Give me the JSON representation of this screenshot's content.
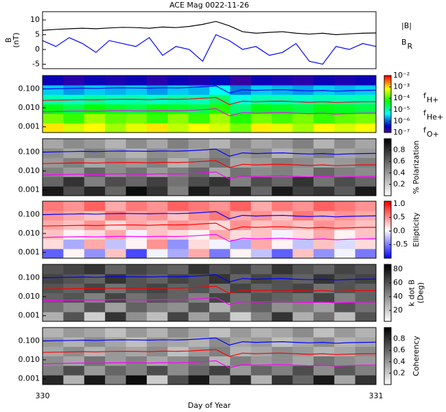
{
  "chart_data": [
    {
      "type": "line",
      "title": "ACE Mag 0022-11-26",
      "ylabel": [
        "B",
        "(nT)"
      ],
      "xlim": [
        330,
        331
      ],
      "ylim": [
        -6.5,
        12.8
      ],
      "yticks": [
        -5,
        0,
        5,
        10
      ],
      "x": [
        330,
        330.04,
        330.08,
        330.12,
        330.16,
        330.2,
        330.24,
        330.28,
        330.32,
        330.36,
        330.4,
        330.44,
        330.48,
        330.52,
        330.56,
        330.6,
        330.64,
        330.68,
        330.72,
        330.76,
        330.8,
        330.84,
        330.88,
        330.92,
        330.96,
        331
      ],
      "series": [
        {
          "name": "|B|",
          "color": "#000000",
          "values": [
            6.5,
            6.8,
            7,
            7.2,
            7,
            7.3,
            7.5,
            7.4,
            7.2,
            7.6,
            7.4,
            7.8,
            8.5,
            9.5,
            8,
            6,
            5.5,
            5.8,
            6,
            5.5,
            5.2,
            5.5,
            5,
            5.3,
            5.5,
            5.6
          ]
        },
        {
          "name": "B",
          "subscript": "R",
          "color": "#0000ff",
          "values": [
            3,
            1,
            4,
            2,
            -1,
            3,
            2,
            1,
            4,
            -2,
            1,
            0,
            -4,
            5,
            3,
            0,
            1,
            -2,
            -1,
            2,
            -4,
            -5,
            1,
            0,
            2,
            1
          ]
        }
      ]
    },
    {
      "type": "spectrogram",
      "colormap": "rainbow",
      "color_log": true,
      "xlim": [
        330,
        331
      ],
      "ylim": [
        0.0005,
        0.5
      ],
      "yticks": [
        {
          "value": 0.001,
          "label": "0.001"
        },
        {
          "value": 0.01,
          "label": "0.010"
        },
        {
          "value": 0.1,
          "label": "0.100"
        }
      ],
      "clim": [
        1e-07,
        0.01
      ],
      "cticks": [
        {
          "value": 0.01,
          "label": "10⁻²"
        },
        {
          "value": 0.001,
          "label": "10⁻³"
        },
        {
          "value": 0.0001,
          "label": "10⁻⁴"
        },
        {
          "value": 1e-05,
          "label": "10⁻⁵"
        },
        {
          "value": 1e-06,
          "label": "10⁻⁶"
        },
        {
          "value": 1e-07,
          "label": "10⁻⁷"
        }
      ],
      "z": [
        [
          0.001,
          0.0005,
          0.0008,
          0.0003,
          0.0006,
          0.001,
          0.0004,
          0.0007,
          0.0005,
          0.0002,
          0.0009,
          0.0006,
          0.0003,
          0.0008,
          0.0005,
          0.0007
        ],
        [
          0.0002,
          0.0001,
          0.0003,
          0.00015,
          0.0002,
          0.0001,
          0.00025,
          0.0001,
          0.0003,
          8e-05,
          0.0002,
          0.00012,
          0.0002,
          0.0001,
          0.00015,
          0.0002
        ],
        [
          5e-05,
          3e-05,
          6e-05,
          4e-05,
          3e-05,
          5e-05,
          4e-05,
          3e-05,
          8e-05,
          2e-05,
          5e-05,
          4e-05,
          3e-05,
          5e-05,
          4e-05,
          3e-05
        ],
        [
          1e-05,
          8e-06,
          1.2e-05,
          9e-06,
          1e-05,
          8e-06,
          1.1e-05,
          9e-06,
          2e-05,
          6e-06,
          1e-05,
          9e-06,
          8e-06,
          1e-05,
          9e-06,
          1e-05
        ],
        [
          3e-06,
          2e-06,
          3e-06,
          2.5e-06,
          3e-06,
          2e-06,
          3e-06,
          2.5e-06,
          5e-06,
          1.5e-06,
          3e-06,
          2.5e-06,
          2e-06,
          3e-06,
          2.5e-06,
          3e-06
        ],
        [
          3e-07,
          2e-07,
          3e-07,
          2.5e-07,
          3e-07,
          2e-07,
          3e-07,
          2.5e-07,
          4e-07,
          1.5e-07,
          3e-07,
          2.5e-07,
          2e-07,
          3e-07,
          2.5e-07,
          3e-07
        ]
      ],
      "x": [
        330,
        330.04,
        330.08,
        330.12,
        330.16,
        330.2,
        330.24,
        330.28,
        330.32,
        330.36,
        330.4,
        330.44,
        330.48,
        330.52,
        330.56,
        330.6,
        330.64,
        330.68,
        330.72,
        330.76,
        330.8,
        330.84,
        330.88,
        330.92,
        330.96,
        331
      ],
      "series": [
        {
          "name": "f",
          "subscript": "H+",
          "color": "#0000ff",
          "values": [
            0.098,
            0.102,
            0.105,
            0.108,
            0.105,
            0.11,
            0.113,
            0.111,
            0.108,
            0.114,
            0.111,
            0.117,
            0.128,
            0.142,
            0.06,
            0.09,
            0.083,
            0.087,
            0.09,
            0.083,
            0.078,
            0.083,
            0.075,
            0.08,
            0.083,
            0.084
          ]
        },
        {
          "name": "f",
          "subscript": "He+",
          "color": "#ff0000",
          "values": [
            0.0245,
            0.0255,
            0.026,
            0.027,
            0.026,
            0.0275,
            0.028,
            0.028,
            0.027,
            0.0285,
            0.028,
            0.029,
            0.032,
            0.035,
            0.015,
            0.0225,
            0.021,
            0.022,
            0.0225,
            0.021,
            0.0195,
            0.021,
            0.019,
            0.02,
            0.021,
            0.021
          ]
        },
        {
          "name": "f",
          "subscript": "O+",
          "color": "#ff00ff",
          "values": [
            0.0061,
            0.0064,
            0.0066,
            0.0068,
            0.0066,
            0.0069,
            0.0071,
            0.0069,
            0.0068,
            0.0071,
            0.0069,
            0.0073,
            0.008,
            0.0089,
            0.0038,
            0.0056,
            0.0052,
            0.0054,
            0.0056,
            0.0052,
            0.0049,
            0.0052,
            0.0047,
            0.005,
            0.0052,
            0.0053
          ]
        }
      ]
    },
    {
      "type": "spectrogram",
      "colormap": "gray",
      "colorbar_label": [
        "% Polarization"
      ],
      "xlim": [
        330,
        331
      ],
      "ylim": [
        0.0005,
        0.5
      ],
      "yticks": [
        {
          "value": 0.001,
          "label": "0.001"
        },
        {
          "value": 0.01,
          "label": "0.010"
        },
        {
          "value": 0.1,
          "label": "0.100"
        }
      ],
      "clim": [
        0,
        1
      ],
      "cticks": [
        0.2,
        0.4,
        0.6,
        0.8
      ],
      "z": [
        [
          0.9,
          0.7,
          0.85,
          0.6,
          0.95,
          0.8,
          0.5,
          0.9,
          0.7,
          0.85,
          0.6,
          0.9,
          0.75,
          0.8,
          0.65,
          0.9
        ],
        [
          0.6,
          0.8,
          0.5,
          0.7,
          0.6,
          0.75,
          0.55,
          0.7,
          0.8,
          0.5,
          0.7,
          0.6,
          0.8,
          0.55,
          0.7,
          0.6
        ],
        [
          0.5,
          0.4,
          0.6,
          0.45,
          0.55,
          0.4,
          0.5,
          0.6,
          0.35,
          0.55,
          0.45,
          0.5,
          0.4,
          0.6,
          0.5,
          0.45
        ],
        [
          0.4,
          0.5,
          0.35,
          0.45,
          0.4,
          0.5,
          0.3,
          0.45,
          0.55,
          0.35,
          0.4,
          0.5,
          0.45,
          0.35,
          0.4,
          0.5
        ],
        [
          0.45,
          0.35,
          0.5,
          0.4,
          0.3,
          0.45,
          0.4,
          0.35,
          0.5,
          0.4,
          0.45,
          0.3,
          0.4,
          0.5,
          0.35,
          0.4
        ],
        [
          0.35,
          0.45,
          0.4,
          0.3,
          0.45,
          0.35,
          0.5,
          0.4,
          0.3,
          0.45,
          0.35,
          0.4,
          0.5,
          0.3,
          0.45,
          0.35
        ]
      ]
    },
    {
      "type": "spectrogram",
      "colormap": "bwr",
      "colorbar_label": [
        "Ellipticity"
      ],
      "xlim": [
        330,
        331
      ],
      "ylim": [
        0.0005,
        0.5
      ],
      "yticks": [
        {
          "value": 0.001,
          "label": "0.001"
        },
        {
          "value": 0.01,
          "label": "0.010"
        },
        {
          "value": 0.1,
          "label": "0.100"
        }
      ],
      "clim": [
        -1,
        1.1
      ],
      "cticks": [
        {
          "value": -0.5,
          "label": "-0.5"
        },
        {
          "value": 0,
          "label": "0.0"
        },
        {
          "value": 0.5,
          "label": "0.5"
        },
        {
          "value": 1,
          "label": "1.0"
        }
      ],
      "z": [
        [
          -0.6,
          0.1,
          -0.4,
          0.3,
          -0.7,
          0.0,
          -0.3,
          0.4,
          -0.5,
          0.1,
          -0.2,
          -0.6,
          0.3,
          -0.4,
          0.0,
          -0.5
        ],
        [
          0.2,
          -0.3,
          0.4,
          -0.2,
          0.1,
          0.5,
          -0.4,
          0.2,
          0.0,
          -0.3,
          0.4,
          0.1,
          -0.2,
          0.3,
          -0.1,
          0.2
        ],
        [
          0.3,
          0.1,
          0.2,
          0.4,
          0.0,
          0.3,
          0.2,
          0.1,
          0.4,
          0.2,
          0.3,
          0.0,
          0.2,
          0.4,
          0.1,
          0.3
        ],
        [
          0.4,
          0.3,
          0.5,
          0.2,
          0.4,
          0.3,
          0.5,
          0.4,
          0.2,
          0.5,
          0.3,
          0.4,
          0.3,
          0.5,
          0.4,
          0.3
        ],
        [
          0.5,
          0.4,
          0.3,
          0.6,
          0.4,
          0.5,
          0.3,
          0.5,
          0.6,
          0.4,
          0.5,
          0.3,
          0.6,
          0.4,
          0.5,
          0.4
        ],
        [
          0.6,
          0.5,
          0.7,
          0.4,
          0.6,
          0.5,
          0.7,
          0.6,
          0.5,
          0.7,
          0.4,
          0.6,
          0.5,
          0.7,
          0.6,
          0.5
        ]
      ]
    },
    {
      "type": "spectrogram",
      "colormap": "gray",
      "colorbar_label": [
        "k dot B",
        "(Deg)"
      ],
      "xlim": [
        330,
        331
      ],
      "ylim": [
        0.0005,
        0.5
      ],
      "yticks": [
        {
          "value": 0.001,
          "label": "0.001"
        },
        {
          "value": 0.01,
          "label": "0.010"
        },
        {
          "value": 0.1,
          "label": "0.100"
        }
      ],
      "clim": [
        4,
        87
      ],
      "cticks": [
        20,
        40,
        60,
        80
      ],
      "z": [
        [
          30,
          60,
          20,
          70,
          40,
          25,
          65,
          35,
          55,
          20,
          45,
          70,
          30,
          50,
          25,
          60
        ],
        [
          50,
          40,
          60,
          35,
          55,
          45,
          40,
          60,
          30,
          50,
          55,
          40,
          45,
          35,
          60,
          50
        ],
        [
          55,
          60,
          45,
          65,
          50,
          60,
          55,
          45,
          65,
          50,
          60,
          55,
          50,
          65,
          45,
          55
        ],
        [
          60,
          55,
          65,
          50,
          60,
          65,
          55,
          60,
          50,
          65,
          55,
          60,
          65,
          50,
          60,
          55
        ],
        [
          65,
          60,
          55,
          70,
          60,
          55,
          65,
          60,
          70,
          55,
          65,
          60,
          55,
          70,
          60,
          65
        ],
        [
          60,
          65,
          70,
          55,
          65,
          60,
          55,
          70,
          60,
          65,
          55,
          70,
          60,
          55,
          65,
          60
        ]
      ]
    },
    {
      "type": "spectrogram",
      "colormap": "gray",
      "colorbar_label": [
        "Coherency"
      ],
      "xlim": [
        330,
        331
      ],
      "ylim": [
        0.0005,
        0.5
      ],
      "yticks": [
        {
          "value": 0.001,
          "label": "0.001"
        },
        {
          "value": 0.01,
          "label": "0.010"
        },
        {
          "value": 0.1,
          "label": "0.100"
        }
      ],
      "clim": [
        0,
        1
      ],
      "cticks": [
        0.2,
        0.4,
        0.6,
        0.8
      ],
      "xticks": [
        330,
        331
      ],
      "xlabel": "Day of Year",
      "z": [
        [
          0.85,
          0.3,
          0.9,
          0.5,
          0.95,
          0.2,
          0.7,
          0.9,
          0.4,
          0.85,
          0.3,
          0.8,
          0.6,
          0.9,
          0.35,
          0.8
        ],
        [
          0.5,
          0.7,
          0.4,
          0.6,
          0.5,
          0.7,
          0.45,
          0.6,
          0.75,
          0.4,
          0.6,
          0.5,
          0.7,
          0.45,
          0.65,
          0.5
        ],
        [
          0.45,
          0.35,
          0.55,
          0.4,
          0.5,
          0.35,
          0.45,
          0.55,
          0.3,
          0.5,
          0.4,
          0.45,
          0.35,
          0.55,
          0.45,
          0.4
        ],
        [
          0.35,
          0.45,
          0.3,
          0.4,
          0.35,
          0.45,
          0.25,
          0.4,
          0.5,
          0.3,
          0.35,
          0.45,
          0.4,
          0.3,
          0.35,
          0.45
        ],
        [
          0.4,
          0.3,
          0.45,
          0.35,
          0.25,
          0.4,
          0.35,
          0.3,
          0.45,
          0.35,
          0.4,
          0.25,
          0.35,
          0.45,
          0.3,
          0.35
        ],
        [
          0.3,
          0.4,
          0.35,
          0.25,
          0.4,
          0.3,
          0.45,
          0.35,
          0.25,
          0.4,
          0.3,
          0.35,
          0.45,
          0.25,
          0.4,
          0.3
        ]
      ]
    }
  ]
}
